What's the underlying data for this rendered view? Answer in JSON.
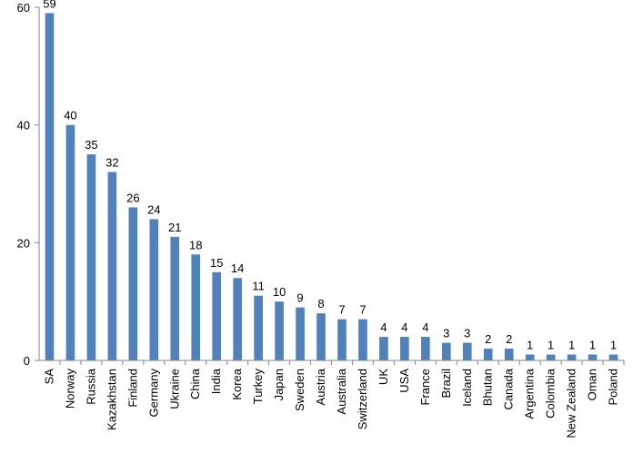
{
  "chart_data": {
    "type": "bar",
    "categories": [
      "SA",
      "Norway",
      "Russia",
      "Kazakhstan",
      "Finland",
      "Germany",
      "Ukraine",
      "China",
      "India",
      "Korea",
      "Turkey",
      "Japan",
      "Sweden",
      "Austria",
      "Australia",
      "Switzerland",
      "UK",
      "USA",
      "France",
      "Brazil",
      "Iceland",
      "Bhutan",
      "Canada",
      "Argentina",
      "Colombia",
      "New Zealand",
      "Oman",
      "Poland"
    ],
    "values": [
      59,
      40,
      35,
      32,
      26,
      24,
      21,
      18,
      15,
      14,
      11,
      10,
      9,
      8,
      7,
      7,
      4,
      4,
      4,
      3,
      3,
      2,
      2,
      1,
      1,
      1,
      1,
      1
    ],
    "ylim": [
      0,
      60
    ],
    "yticks": [
      0,
      20,
      40,
      60
    ],
    "title": "",
    "xlabel": "",
    "ylabel": "",
    "grid": false,
    "legend": "none",
    "bar_color": "#4f81bd",
    "axis_color": "#868686"
  }
}
